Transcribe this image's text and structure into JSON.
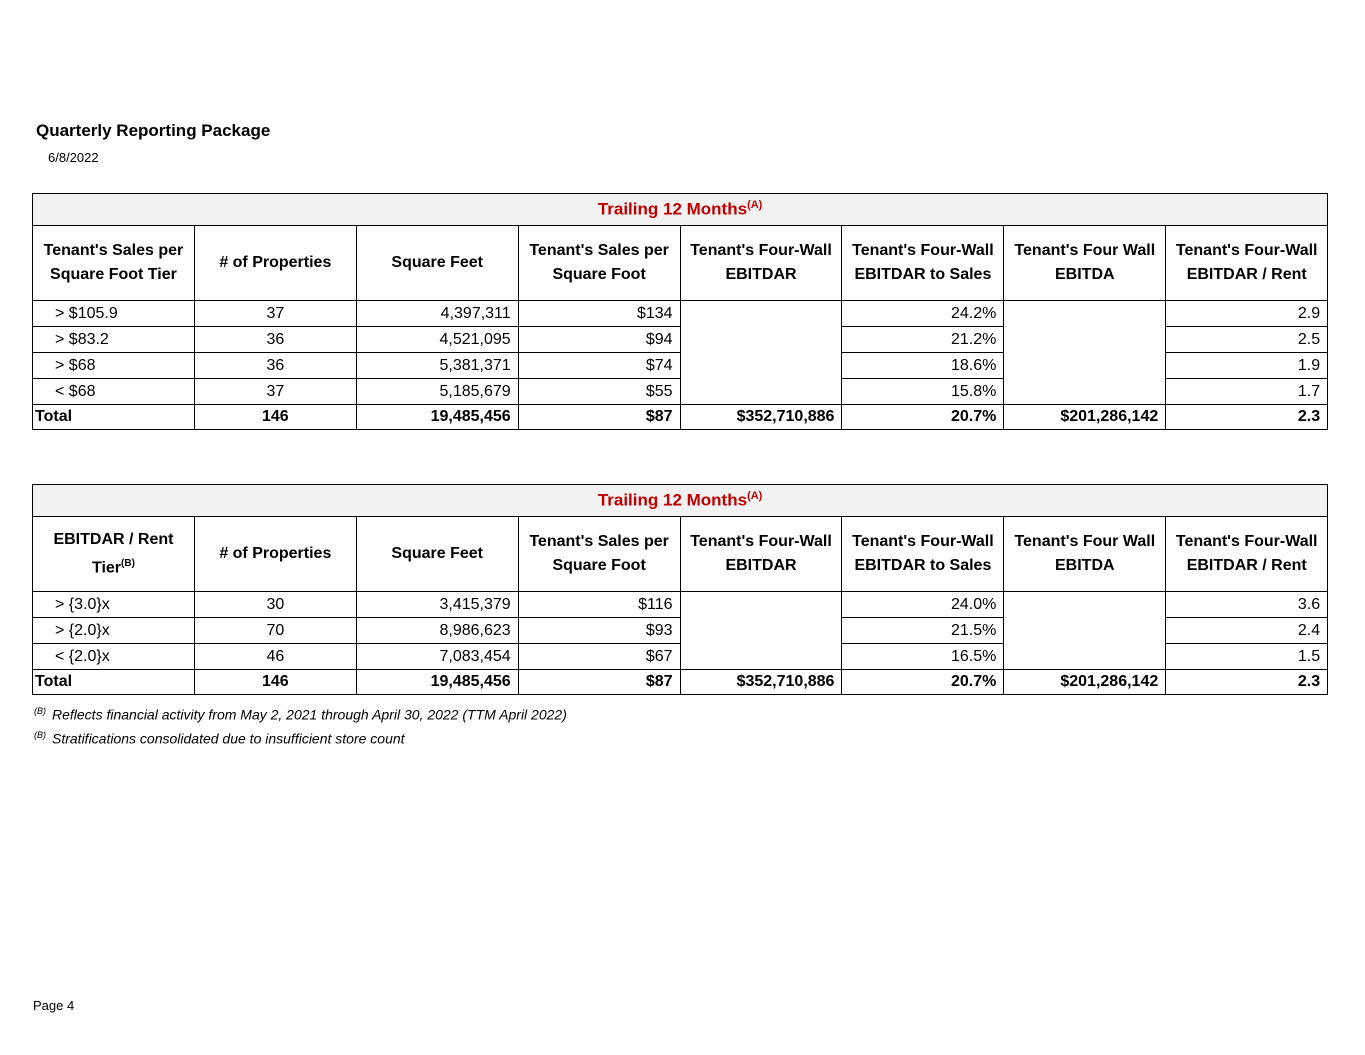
{
  "header": {
    "title": "Quarterly Reporting Package",
    "date": "6/8/2022"
  },
  "band": {
    "label": "Trailing 12 Months",
    "sup": "(A)"
  },
  "columns": [
    "# of Properties",
    "Square Feet",
    "Tenant's Sales per Square Foot",
    "Tenant's Four-Wall EBITDAR",
    "Tenant's Four-Wall EBITDAR to Sales",
    "Tenant's Four Wall EBITDA",
    "Tenant's Four-Wall EBITDAR / Rent"
  ],
  "table1": {
    "first_col": "Tenant's Sales per Square Foot Tier",
    "rows": [
      {
        "tier": ">  $105.9",
        "props": "37",
        "sqft": "4,397,311",
        "spsf": "$134",
        "ratio": "24.2%",
        "rent": "2.9"
      },
      {
        "tier": "> $83.2",
        "props": "36",
        "sqft": "4,521,095",
        "spsf": "$94",
        "ratio": "21.2%",
        "rent": "2.5"
      },
      {
        "tier": "> $68",
        "props": "36",
        "sqft": "5,381,371",
        "spsf": "$74",
        "ratio": "18.6%",
        "rent": "1.9"
      },
      {
        "tier": "< $68",
        "props": "37",
        "sqft": "5,185,679",
        "spsf": "$55",
        "ratio": "15.8%",
        "rent": "1.7"
      }
    ],
    "total": {
      "label": "Total",
      "props": "146",
      "sqft": "19,485,456",
      "spsf": "$87",
      "ebitdar": "$352,710,886",
      "ratio": "20.7%",
      "ebitda": "$201,286,142",
      "rent": "2.3"
    }
  },
  "table2": {
    "first_col": "EBITDAR / Rent Tier",
    "first_col_sup": "(B)",
    "rows": [
      {
        "tier": "> {3.0}x",
        "props": "30",
        "sqft": "3,415,379",
        "spsf": "$116",
        "ratio": "24.0%",
        "rent": "3.6"
      },
      {
        "tier": "> {2.0}x",
        "props": "70",
        "sqft": "8,986,623",
        "spsf": "$93",
        "ratio": "21.5%",
        "rent": "2.4"
      },
      {
        "tier": "< {2.0}x",
        "props": "46",
        "sqft": "7,083,454",
        "spsf": "$67",
        "ratio": "16.5%",
        "rent": "1.5"
      }
    ],
    "total": {
      "label": "Total",
      "props": "146",
      "sqft": "19,485,456",
      "spsf": "$87",
      "ebitdar": "$352,710,886",
      "ratio": "20.7%",
      "ebitda": "$201,286,142",
      "rent": "2.3"
    }
  },
  "footnotes": [
    {
      "mark": "(B)",
      "text": "Reflects financial activity from May 2, 2021 through April 30, 2022 (TTM April 2022)"
    },
    {
      "mark": "(B)",
      "text": "Stratifications consolidated due to insufficient store count"
    }
  ],
  "footer": {
    "page": "Page 4"
  }
}
